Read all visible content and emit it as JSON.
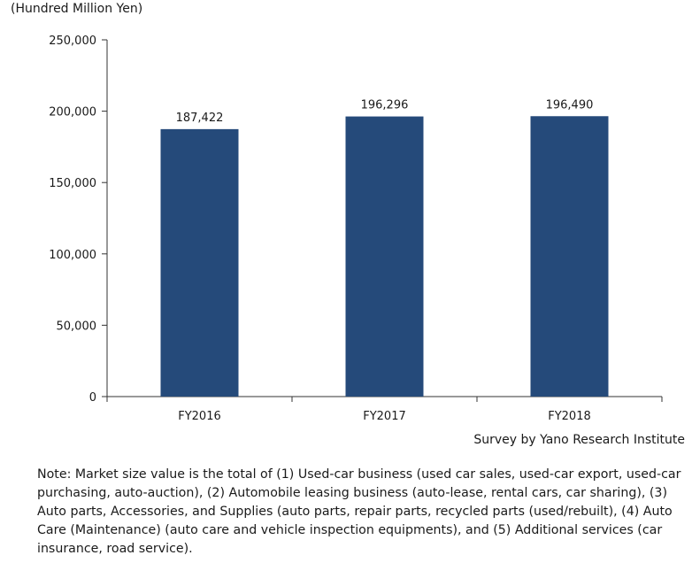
{
  "chart_data": {
    "type": "bar",
    "unit_label": "(Hundred Million Yen)",
    "categories": [
      "FY2016",
      "FY2017",
      "FY2018"
    ],
    "values": [
      187422,
      196296,
      196490
    ],
    "value_labels": [
      "187,422",
      "196,296",
      "196,490"
    ],
    "ylim": [
      0,
      250000
    ],
    "yticks": [
      0,
      50000,
      100000,
      150000,
      200000,
      250000
    ],
    "ytick_labels": [
      "0",
      "50,000",
      "100,000",
      "150,000",
      "200,000",
      "250,000"
    ],
    "bar_color": "#254a7a",
    "grid": false,
    "legend": "none"
  },
  "source": "Survey by Yano Research Institute",
  "note": "Note: Market size value is the total of  (1) Used-car business (used car sales, used-car export, used-car purchasing, auto-auction), (2) Automobile leasing business (auto-lease, rental cars, car sharing), (3) Auto parts, Accessories, and Supplies (auto parts, repair parts, recycled parts (used/rebuilt), (4) Auto Care (Maintenance)  (auto care and vehicle inspection equipments), and (5) Additional services (car insurance, road service)."
}
